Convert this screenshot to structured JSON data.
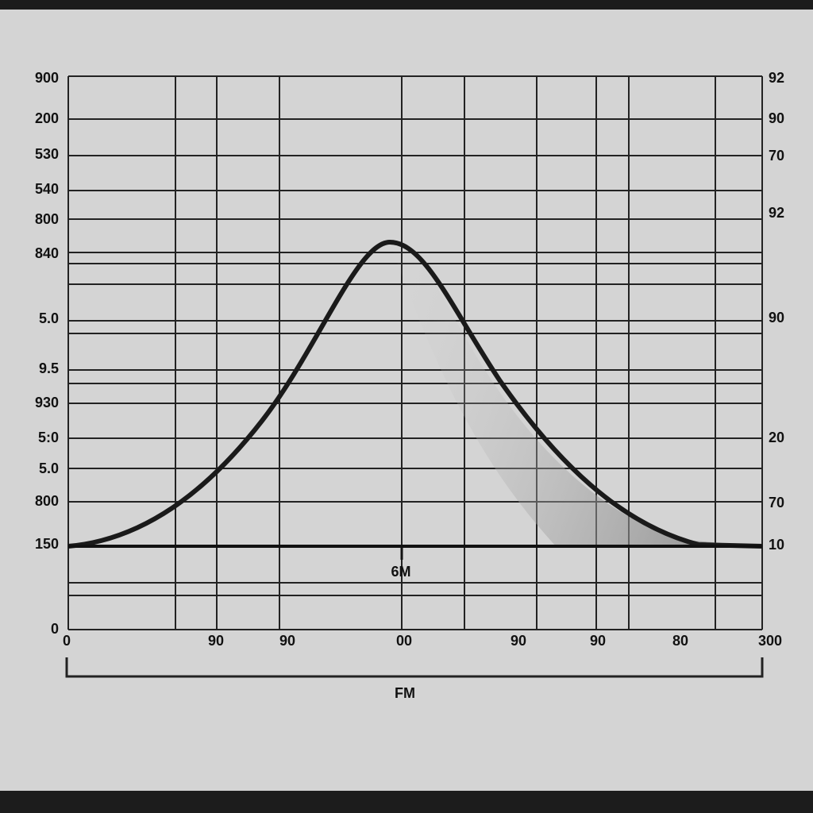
{
  "left_labels": [
    "900",
    "200",
    "530",
    "540",
    "800",
    "840",
    "5.0",
    "9.5",
    "930",
    "5:0",
    "5.0",
    "800",
    "150",
    "0"
  ],
  "right_labels": [
    "92",
    "90",
    "70",
    "92",
    "90",
    "20",
    "70",
    "10"
  ],
  "bottom_labels": [
    "0",
    "90",
    "90",
    "00",
    "90",
    "90",
    "80",
    "300"
  ],
  "marker_label": "6M",
  "axis_label": "FM"
}
